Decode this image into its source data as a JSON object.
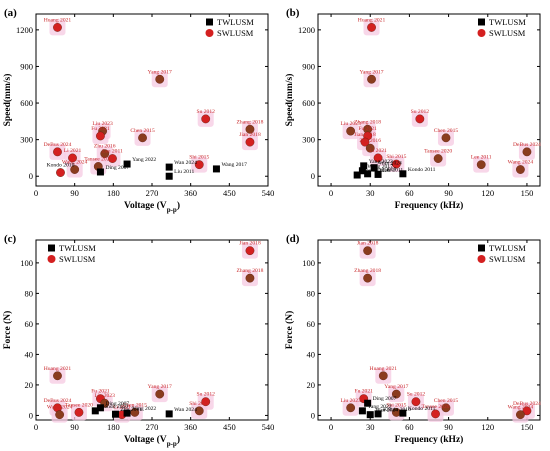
{
  "colors": {
    "twl": "#000000",
    "swl": "#d42020",
    "swl_dark": "#8a3c1e",
    "highlight": "#f6c9e2",
    "label_red": "#c8282a"
  },
  "chart_data": [
    {
      "tag": "(a)",
      "type": "scatter",
      "xlabel": "Voltage (V",
      "xlabel_sub": "p-p",
      "xlabel_end": ")",
      "ylabel": "Speed(mm/s)",
      "xlim": [
        0,
        540
      ],
      "ylim": [
        -80,
        1330
      ],
      "xticks": [
        0,
        90,
        180,
        270,
        360,
        450,
        540
      ],
      "yticks": [
        0,
        300,
        600,
        900,
        1200
      ],
      "legend": {
        "position": "top-right",
        "entries": [
          "TWLUSM",
          "SWLUSM"
        ]
      },
      "series": [
        {
          "name": "TWLUSM",
          "points": [
            {
              "label": "Ding 2007",
              "x": 150,
              "y": 35
            },
            {
              "label": "Yang 2022",
              "x": 212,
              "y": 100
            },
            {
              "label": "Wan 2024",
              "x": 310,
              "y": 75
            },
            {
              "label": "Liu 2011",
              "x": 310,
              "y": 0
            },
            {
              "label": "Wang 2017",
              "x": 420,
              "y": 60
            }
          ]
        },
        {
          "name": "SWLUSM",
          "points": [
            {
              "label": "Huang 2021",
              "x": 50,
              "y": 1220,
              "hl": true,
              "dark": false
            },
            {
              "label": "Yang 2017",
              "x": 288,
              "y": 795,
              "hl": true,
              "dark": true
            },
            {
              "label": "Su 2012",
              "x": 395,
              "y": 470,
              "hl": true,
              "dark": false
            },
            {
              "label": "Zhang 2018",
              "x": 498,
              "y": 385,
              "hl": true,
              "dark": true
            },
            {
              "label": "Jian 2018",
              "x": 498,
              "y": 280,
              "hl": true,
              "dark": false
            },
            {
              "label": "Liu 2023",
              "x": 155,
              "y": 370,
              "hl": true,
              "dark": true
            },
            {
              "label": "Fu 2021",
              "x": 150,
              "y": 330,
              "hl": true,
              "dark": false
            },
            {
              "label": "Chen 2015",
              "x": 248,
              "y": 315,
              "hl": true,
              "dark": true
            },
            {
              "label": "DeBus 2024",
              "x": 50,
              "y": 200,
              "hl": true,
              "dark": false
            },
            {
              "label": "Zhu 2016",
              "x": 160,
              "y": 185,
              "hl": true,
              "dark": true
            },
            {
              "label": "Li 2021",
              "x": 85,
              "y": 150,
              "hl": true,
              "dark": false
            },
            {
              "label": "Lee 2011",
              "x": 178,
              "y": 145,
              "hl": true,
              "dark": false
            },
            {
              "label": "Wang 2024",
              "x": 90,
              "y": 55,
              "hl": true,
              "dark": true
            },
            {
              "label": "Tansee 2020",
              "x": 145,
              "y": 80,
              "hl": true,
              "dark": true
            },
            {
              "label": "Shi 2015",
              "x": 380,
              "y": 95,
              "hl": true,
              "dark": false
            },
            {
              "label": "Kondo 2010",
              "x": 57,
              "y": 30,
              "hl": false,
              "dark": false
            }
          ]
        }
      ]
    },
    {
      "tag": "(b)",
      "type": "scatter",
      "xlabel": "Frequency (kHz)",
      "xlabel_sub": "",
      "xlabel_end": "",
      "ylabel": "Speed(mm/s)",
      "xlim": [
        -10,
        160
      ],
      "ylim": [
        -80,
        1330
      ],
      "xticks": [
        0,
        30,
        60,
        90,
        120,
        150
      ],
      "yticks": [
        0,
        300,
        600,
        900,
        1200
      ],
      "legend": {
        "position": "top-right",
        "entries": [
          "TWLUSM",
          "SWLUSM"
        ]
      },
      "series": [
        {
          "name": "TWLUSM",
          "points": [
            {
              "label": "Yang 2022",
              "x": 25,
              "y": 85
            },
            {
              "label": "Wang 2017",
              "x": 24,
              "y": 45
            },
            {
              "label": "Wan 2024",
              "x": 33,
              "y": 70
            },
            {
              "label": "Kondo 2010",
              "x": 20,
              "y": 10
            },
            {
              "label": "Ding 2007",
              "x": 28,
              "y": 20
            },
            {
              "label": "Liu 2011",
              "x": 36,
              "y": 15
            },
            {
              "label": "Kondo 2011",
              "x": 55,
              "y": 20
            }
          ]
        },
        {
          "name": "SWLUSM",
          "points": [
            {
              "label": "Huang 2021",
              "x": 31,
              "y": 1220,
              "hl": true,
              "dark": false
            },
            {
              "label": "Yang 2017",
              "x": 31,
              "y": 795,
              "hl": true,
              "dark": true
            },
            {
              "label": "Su 2012",
              "x": 68,
              "y": 470,
              "hl": true,
              "dark": false
            },
            {
              "label": "Zhang 2018",
              "x": 28,
              "y": 385,
              "hl": true,
              "dark": true
            },
            {
              "label": "Liu 2023",
              "x": 15,
              "y": 370,
              "hl": true,
              "dark": true
            },
            {
              "label": "Fu 2021",
              "x": 28,
              "y": 330,
              "hl": true,
              "dark": false
            },
            {
              "label": "Chen 2015",
              "x": 88,
              "y": 315,
              "hl": true,
              "dark": true
            },
            {
              "label": "Jian 2018",
              "x": 26,
              "y": 280,
              "hl": true,
              "dark": false
            },
            {
              "label": "Zhu 2016",
              "x": 30,
              "y": 230,
              "hl": true,
              "dark": true
            },
            {
              "label": "DeBus 2024",
              "x": 150,
              "y": 200,
              "hl": true,
              "dark": true
            },
            {
              "label": "Li 2021",
              "x": 36,
              "y": 150,
              "hl": true,
              "dark": false
            },
            {
              "label": "Tansee 2020",
              "x": 82,
              "y": 145,
              "hl": true,
              "dark": true
            },
            {
              "label": "Lee 2011",
              "x": 115,
              "y": 95,
              "hl": true,
              "dark": true
            },
            {
              "label": "Shi 2015",
              "x": 50,
              "y": 100,
              "hl": true,
              "dark": false
            },
            {
              "label": "Wang 2024",
              "x": 145,
              "y": 55,
              "hl": true,
              "dark": true
            }
          ]
        }
      ]
    },
    {
      "tag": "(c)",
      "type": "scatter",
      "xlabel": "Voltage (V",
      "xlabel_sub": "p-p",
      "xlabel_end": ")",
      "ylabel": "Force (N)",
      "xlim": [
        0,
        540
      ],
      "ylim": [
        -3,
        115
      ],
      "xticks": [
        0,
        90,
        180,
        270,
        360,
        450,
        540
      ],
      "yticks": [
        0,
        20,
        40,
        60,
        80,
        100
      ],
      "legend": {
        "position": "top-left",
        "entries": [
          "TWLUSM",
          "SWLUSM"
        ]
      },
      "series": [
        {
          "name": "TWLUSM",
          "points": [
            {
              "label": "Kondo 2010",
              "x": 138,
              "y": 3
            },
            {
              "label": "Ding 2007",
              "x": 150,
              "y": 5
            },
            {
              "label": "Yang 2022",
              "x": 212,
              "y": 1.5
            },
            {
              "label": "Wan 2024",
              "x": 310,
              "y": 1
            },
            {
              "label": "Zhu 2011",
              "x": 185,
              "y": 0.8
            }
          ]
        },
        {
          "name": "SWLUSM",
          "points": [
            {
              "label": "Jian 2018",
              "x": 498,
              "y": 108,
              "hl": true,
              "dark": false
            },
            {
              "label": "Zhang 2018",
              "x": 498,
              "y": 90,
              "hl": true,
              "dark": true
            },
            {
              "label": "Huang 2021",
              "x": 50,
              "y": 26,
              "hl": true,
              "dark": true
            },
            {
              "label": "Yang 2017",
              "x": 288,
              "y": 14,
              "hl": true,
              "dark": true
            },
            {
              "label": "Su 2012",
              "x": 395,
              "y": 9,
              "hl": true,
              "dark": false
            },
            {
              "label": "Fu 2021",
              "x": 150,
              "y": 11,
              "hl": true,
              "dark": false
            },
            {
              "label": "Liu 2023",
              "x": 160,
              "y": 8,
              "hl": true,
              "dark": true
            },
            {
              "label": "DeBus 2024",
              "x": 50,
              "y": 5,
              "hl": true,
              "dark": false
            },
            {
              "label": "Shi 2015",
              "x": 380,
              "y": 3,
              "hl": true,
              "dark": true
            },
            {
              "label": "Tansee 2020",
              "x": 100,
              "y": 2,
              "hl": true,
              "dark": false
            },
            {
              "label": "Chen 2015",
              "x": 230,
              "y": 2,
              "hl": true,
              "dark": true
            },
            {
              "label": "Wang 2024",
              "x": 55,
              "y": 0.5,
              "hl": true,
              "dark": true
            },
            {
              "label": "Li 2021",
              "x": 200,
              "y": 0.5,
              "hl": true,
              "dark": false
            }
          ]
        }
      ]
    },
    {
      "tag": "(d)",
      "type": "scatter",
      "xlabel": "Frequency (kHz)",
      "xlabel_sub": "",
      "xlabel_end": "",
      "ylabel": "Force (N)",
      "xlim": [
        -10,
        160
      ],
      "ylim": [
        -3,
        115
      ],
      "xticks": [
        0,
        30,
        60,
        90,
        120,
        150
      ],
      "yticks": [
        0,
        20,
        40,
        60,
        80,
        100
      ],
      "legend": {
        "position": "top-right",
        "entries": [
          "TWLUSM",
          "SWLUSM"
        ]
      },
      "series": [
        {
          "name": "TWLUSM",
          "points": [
            {
              "label": "Ding 2007",
              "x": 28,
              "y": 8
            },
            {
              "label": "Yang 2022",
              "x": 24,
              "y": 3
            },
            {
              "label": "Kondo 2010",
              "x": 36,
              "y": 1
            },
            {
              "label": "Wan 2024",
              "x": 30,
              "y": 0.5
            },
            {
              "label": "Kondo 2011",
              "x": 55,
              "y": 1.5
            }
          ]
        },
        {
          "name": "SWLUSM",
          "points": [
            {
              "label": "Jian 2018",
              "x": 28,
              "y": 108,
              "hl": true,
              "dark": true
            },
            {
              "label": "Zhang 2018",
              "x": 28,
              "y": 90,
              "hl": true,
              "dark": true
            },
            {
              "label": "Huang 2021",
              "x": 40,
              "y": 26,
              "hl": true,
              "dark": true
            },
            {
              "label": "Yang 2017",
              "x": 50,
              "y": 14,
              "hl": true,
              "dark": true
            },
            {
              "label": "Fu 2021",
              "x": 25,
              "y": 11,
              "hl": true,
              "dark": false
            },
            {
              "label": "Su 2012",
              "x": 65,
              "y": 9,
              "hl": true,
              "dark": false
            },
            {
              "label": "Liu 2023",
              "x": 15,
              "y": 5,
              "hl": true,
              "dark": true
            },
            {
              "label": "Chen 2015",
              "x": 88,
              "y": 5,
              "hl": true,
              "dark": true
            },
            {
              "label": "DeBus 2024",
              "x": 150,
              "y": 3,
              "hl": true,
              "dark": false
            },
            {
              "label": "Shi 2015",
              "x": 50,
              "y": 2,
              "hl": true,
              "dark": true
            },
            {
              "label": "Tansee 2020",
              "x": 80,
              "y": 1,
              "hl": true,
              "dark": false
            },
            {
              "label": "Wang 2024",
              "x": 145,
              "y": 0.5,
              "hl": true,
              "dark": true
            }
          ]
        }
      ]
    }
  ]
}
